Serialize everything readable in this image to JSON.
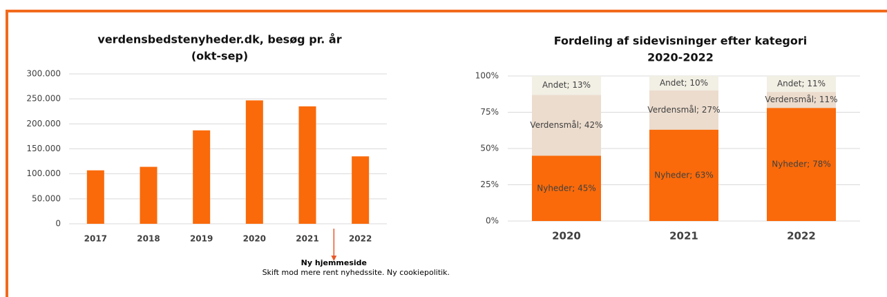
{
  "chart_data": [
    {
      "type": "bar",
      "title": [
        "verdensbedstenyheder.dk, besøg pr. år",
        "(okt-sep)"
      ],
      "categories": [
        "2017",
        "2018",
        "2019",
        "2020",
        "2021",
        "2022"
      ],
      "values": [
        107000,
        114000,
        187000,
        247000,
        235000,
        135000
      ],
      "color": "#fa6a0a",
      "ylim": [
        0,
        300000
      ],
      "yticks": [
        0,
        {
          "value": 50000,
          "label": "50.000"
        },
        {
          "value": 100000,
          "label": "100.000"
        },
        {
          "value": 150000,
          "label": "150.000"
        },
        {
          "value": 200000,
          "label": "200.000"
        },
        {
          "value": 250000,
          "label": "250.000"
        },
        {
          "value": 300000,
          "label": "300.000"
        }
      ],
      "grid": true,
      "annotation": {
        "title": "Ny hjemmeside",
        "text": "Skift mod mere rent nyhedssite. Ny cookiepolitik."
      }
    },
    {
      "type": "stacked_bar",
      "title": [
        "Fordeling af sidevisninger efter kategori",
        "2020-2022"
      ],
      "categories": [
        "2020",
        "2021",
        "2022"
      ],
      "series": [
        {
          "name": "Nyheder",
          "color": "#fa6a0a",
          "values": [
            45,
            63,
            78
          ],
          "value_labels": [
            "Nyheder; 45%",
            "Nyheder; 63%",
            "Nyheder; 78%"
          ]
        },
        {
          "name": "Verdensmål",
          "color": "#ecdccd",
          "values": [
            42,
            27,
            11
          ],
          "value_labels": [
            "Verdensmål; 42%",
            "Verdensmål; 27%",
            "Verdensmål; 11%"
          ]
        },
        {
          "name": "Andet",
          "color": "#f2efe4",
          "values": [
            13,
            10,
            11
          ],
          "value_labels": [
            "Andet; 13%",
            "Andet; 10%",
            "Andet; 11%"
          ]
        }
      ],
      "ylim": [
        0,
        100
      ],
      "yticks": [
        {
          "value": 0,
          "label": "0%"
        },
        {
          "value": 25,
          "label": "25%"
        },
        {
          "value": 50,
          "label": "50%"
        },
        {
          "value": 75,
          "label": "75%"
        },
        {
          "value": 100,
          "label": "100%"
        }
      ],
      "grid": true
    }
  ]
}
